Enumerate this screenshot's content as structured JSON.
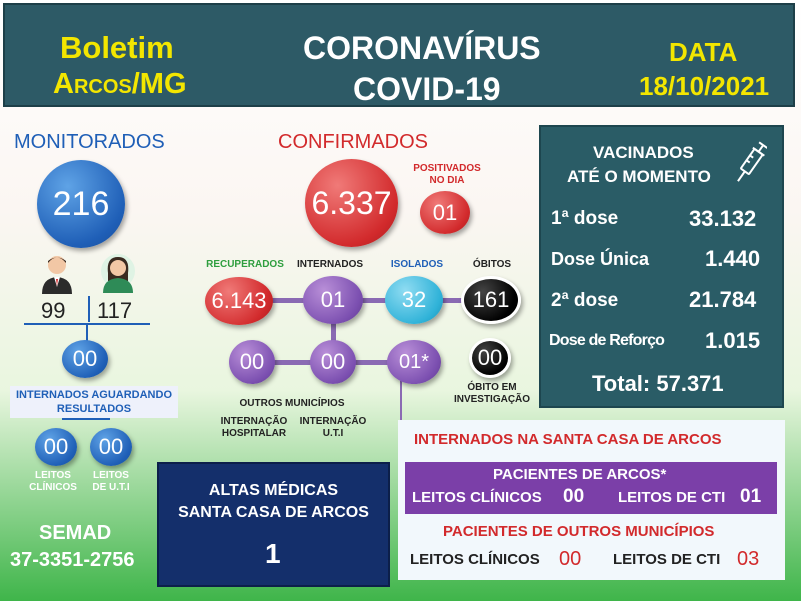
{
  "header": {
    "left_line1": "Boletim",
    "left_line2": "Arcos/MG",
    "center_line1": "CORONAVÍRUS",
    "center_line2": "COVID-19",
    "right_line1": "DATA",
    "right_line2": "18/10/2021"
  },
  "monitorados": {
    "title": "MONITORADOS",
    "total": "216",
    "male": "99",
    "female": "117",
    "internados_aguardando": "00",
    "internados_aguardando_label": "INTERNADOS AGUARDANDO RESULTADOS",
    "leitos_clinicos": "00",
    "leitos_clinicos_label_1": "LEITOS",
    "leitos_clinicos_label_2": "CLÍNICOS",
    "leitos_uti": "00",
    "leitos_uti_label_1": "LEITOS",
    "leitos_uti_label_2": "DE U.T.I"
  },
  "confirmados": {
    "title": "CONFIRMADOS",
    "total": "6.337",
    "positivados_label_1": "POSITIVADOS",
    "positivados_label_2": "NO DIA",
    "positivados": "01",
    "recuperados_label": "RECUPERADOS",
    "recuperados": "6.143",
    "internados_label": "INTERNADOS",
    "internados": "01",
    "isolados_label": "ISOLADOS",
    "isolados": "32",
    "obitos_label": "ÓBITOS",
    "obitos": "161",
    "obito_investigacao": "00",
    "obito_investigacao_label_1": "ÓBITO EM",
    "obito_investigacao_label_2": "INVESTIGAÇÃO",
    "internacao_hospitalar": "00",
    "internacao_uti": "00",
    "outros_municipios_value": "01*",
    "outros_municipios_label": "OUTROS MUNICÍPIOS",
    "internacao_hospitalar_label_1": "INTERNAÇÃO",
    "internacao_hospitalar_label_2": "HOSPITALAR",
    "internacao_uti_label_1": "INTERNAÇÃO",
    "internacao_uti_label_2": "U.T.I"
  },
  "vacinados": {
    "title_1": "VACINADOS",
    "title_2": "ATÉ O MOMENTO",
    "dose1_label": "1ª dose",
    "dose1": "33.132",
    "dose_unica_label": "Dose Única",
    "dose_unica": "1.440",
    "dose2_label": "2ª dose",
    "dose2": "21.784",
    "reforco_label": "Dose de Reforço",
    "reforco": "1.015",
    "total": "Total: 57.371"
  },
  "santa_casa": {
    "title": "INTERNADOS NA SANTA CASA DE ARCOS",
    "arcos_title": "PACIENTES DE ARCOS*",
    "arcos_clinicos_label": "LEITOS CLÍNICOS",
    "arcos_clinicos": "00",
    "arcos_cti_label": "LEITOS DE CTI",
    "arcos_cti": "01",
    "outros_title": "PACIENTES DE OUTROS MUNICÍPIOS",
    "outros_clinicos_label": "LEITOS CLÍNICOS",
    "outros_clinicos": "00",
    "outros_cti_label": "LEITOS DE CTI",
    "outros_cti": "03"
  },
  "altas": {
    "title_1": "ALTAS MÉDICAS",
    "title_2": "SANTA CASA DE ARCOS",
    "value": "1"
  },
  "semad": {
    "name": "SEMAD",
    "phone": "37-3351-2756"
  },
  "colors": {
    "header_bg": "#2d5a66",
    "accent_yellow": "#f3e600",
    "confirmados_red": "#d22a2c",
    "monitorados_blue": "#1f5fb7",
    "internados_purple": "#7b4fb0",
    "isolados_cyan": "#2fb2d8"
  },
  "icons": [
    "male-avatar-icon",
    "female-avatar-icon",
    "syringe-icon"
  ]
}
